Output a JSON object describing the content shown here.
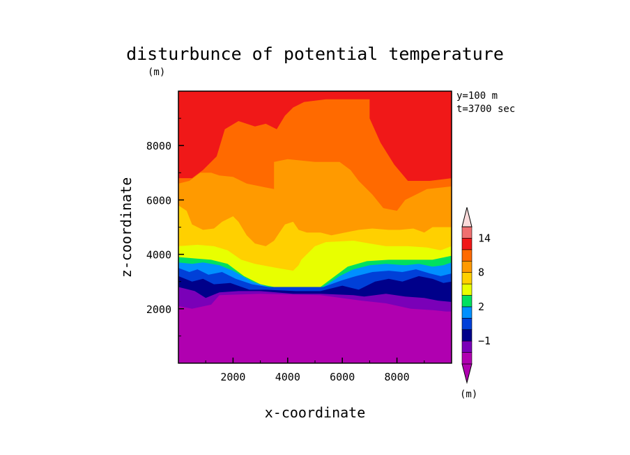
{
  "chart_data": {
    "type": "heatmap",
    "title": "disturbunce of potential temperature",
    "title_unit": "(m)",
    "annotation_lines": [
      "y=100 m",
      "t=3700 sec"
    ],
    "xlabel": "x-coordinate",
    "ylabel": "z-coordinate",
    "xlim": [
      0,
      10000
    ],
    "ylim": [
      0,
      10000
    ],
    "x_ticks": [
      2000,
      4000,
      6000,
      8000
    ],
    "y_ticks": [
      2000,
      4000,
      6000,
      8000
    ],
    "colorbar": {
      "unit_label": "(m)",
      "tick_labels": [
        "14",
        "8",
        "2",
        "-1"
      ],
      "levels": [
        -3,
        -2,
        -1,
        0,
        1,
        2,
        4,
        6,
        8,
        10,
        12,
        14,
        16
      ],
      "colors": [
        "#b000b0",
        "#7a00b8",
        "#00008a",
        "#0040d8",
        "#0090ff",
        "#00e060",
        "#e8ff00",
        "#ffd000",
        "#ff9a00",
        "#ff6a00",
        "#f01818",
        "#f07070",
        "#f4b8b8",
        "#fadada"
      ]
    },
    "bands": [
      {
        "name": "le-3",
        "color": "#b000b0",
        "boundary": [
          [
            0,
            2100
          ],
          [
            500,
            2000
          ],
          [
            1200,
            2150
          ],
          [
            1500,
            2500
          ],
          [
            3000,
            2550
          ],
          [
            5200,
            2500
          ],
          [
            6700,
            2300
          ],
          [
            7600,
            2200
          ],
          [
            8500,
            2000
          ],
          [
            9300,
            1950
          ],
          [
            9800,
            1900
          ],
          [
            10000,
            1900
          ]
        ]
      },
      {
        "name": "-3to-2",
        "color": "#7a00b8",
        "boundary": [
          [
            0,
            2800
          ],
          [
            600,
            2650
          ],
          [
            1000,
            2400
          ],
          [
            1500,
            2600
          ],
          [
            2200,
            2650
          ],
          [
            3000,
            2650
          ],
          [
            4200,
            2550
          ],
          [
            5200,
            2550
          ],
          [
            6400,
            2500
          ],
          [
            6800,
            2450
          ],
          [
            7600,
            2550
          ],
          [
            8300,
            2450
          ],
          [
            9000,
            2400
          ],
          [
            9500,
            2300
          ],
          [
            10000,
            2250
          ]
        ]
      },
      {
        "name": "-2to-1",
        "color": "#00008a",
        "boundary": [
          [
            0,
            3200
          ],
          [
            500,
            3000
          ],
          [
            900,
            3100
          ],
          [
            1300,
            2900
          ],
          [
            1900,
            2950
          ],
          [
            2600,
            2700
          ],
          [
            3200,
            2700
          ],
          [
            4300,
            2650
          ],
          [
            5200,
            2650
          ],
          [
            6000,
            2850
          ],
          [
            6600,
            2700
          ],
          [
            7200,
            3000
          ],
          [
            7700,
            3100
          ],
          [
            8200,
            3000
          ],
          [
            8800,
            3200
          ],
          [
            9300,
            3100
          ],
          [
            9700,
            2950
          ],
          [
            10000,
            3000
          ]
        ]
      },
      {
        "name": "-1to0",
        "color": "#0040d8",
        "boundary": [
          [
            0,
            3500
          ],
          [
            400,
            3350
          ],
          [
            700,
            3450
          ],
          [
            1100,
            3250
          ],
          [
            1600,
            3350
          ],
          [
            2100,
            3100
          ],
          [
            2700,
            2900
          ],
          [
            3300,
            2800
          ],
          [
            5300,
            2800
          ],
          [
            6000,
            3050
          ],
          [
            6500,
            3200
          ],
          [
            7100,
            3350
          ],
          [
            7700,
            3400
          ],
          [
            8200,
            3350
          ],
          [
            8700,
            3450
          ],
          [
            9200,
            3300
          ],
          [
            9600,
            3200
          ],
          [
            10000,
            3300
          ]
        ]
      },
      {
        "name": "0to1",
        "color": "#0090ff",
        "boundary": [
          [
            0,
            3700
          ],
          [
            500,
            3650
          ],
          [
            900,
            3700
          ],
          [
            1500,
            3600
          ],
          [
            2000,
            3400
          ],
          [
            2700,
            3000
          ],
          [
            3300,
            2800
          ],
          [
            5300,
            2800
          ],
          [
            5900,
            3200
          ],
          [
            6400,
            3450
          ],
          [
            7000,
            3600
          ],
          [
            7600,
            3650
          ],
          [
            8300,
            3600
          ],
          [
            8800,
            3650
          ],
          [
            9300,
            3550
          ],
          [
            9700,
            3600
          ],
          [
            10000,
            3700
          ]
        ]
      },
      {
        "name": "1to2",
        "color": "#00e060",
        "boundary": [
          [
            0,
            3900
          ],
          [
            600,
            3850
          ],
          [
            1200,
            3800
          ],
          [
            1800,
            3650
          ],
          [
            2400,
            3200
          ],
          [
            3000,
            2900
          ],
          [
            3500,
            2800
          ],
          [
            5200,
            2800
          ],
          [
            5600,
            3100
          ],
          [
            6200,
            3550
          ],
          [
            6900,
            3750
          ],
          [
            7700,
            3800
          ],
          [
            8500,
            3800
          ],
          [
            9300,
            3800
          ],
          [
            10000,
            3950
          ]
        ]
      },
      {
        "name": "2to4",
        "color": "#e8ff00",
        "boundary": [
          [
            0,
            4300
          ],
          [
            700,
            4350
          ],
          [
            1300,
            4300
          ],
          [
            1800,
            4150
          ],
          [
            2300,
            3800
          ],
          [
            2800,
            3650
          ],
          [
            3600,
            3500
          ],
          [
            4200,
            3400
          ],
          [
            4400,
            3600
          ],
          [
            4500,
            3800
          ],
          [
            5000,
            4300
          ],
          [
            5400,
            4450
          ],
          [
            6400,
            4500
          ],
          [
            7000,
            4400
          ],
          [
            7600,
            4300
          ],
          [
            8400,
            4300
          ],
          [
            9100,
            4250
          ],
          [
            9600,
            4150
          ],
          [
            10000,
            4300
          ]
        ]
      },
      {
        "name": "4to6",
        "color": "#ffd000",
        "boundary": [
          [
            0,
            5800
          ],
          [
            300,
            5600
          ],
          [
            500,
            5100
          ],
          [
            900,
            4900
          ],
          [
            1300,
            4950
          ],
          [
            1600,
            5200
          ],
          [
            2000,
            5400
          ],
          [
            2200,
            5200
          ],
          [
            2500,
            4700
          ],
          [
            2800,
            4400
          ],
          [
            3200,
            4300
          ],
          [
            3500,
            4500
          ],
          [
            3700,
            4800
          ],
          [
            3900,
            5100
          ],
          [
            4200,
            5200
          ],
          [
            4400,
            4900
          ],
          [
            4700,
            4800
          ],
          [
            5200,
            4800
          ],
          [
            5600,
            4700
          ],
          [
            6100,
            4800
          ],
          [
            6600,
            4900
          ],
          [
            7100,
            4950
          ],
          [
            7700,
            4900
          ],
          [
            8100,
            4900
          ],
          [
            8600,
            4950
          ],
          [
            9000,
            4800
          ],
          [
            9300,
            5000
          ],
          [
            9700,
            5000
          ],
          [
            10000,
            5000
          ]
        ]
      },
      {
        "name": "6to8",
        "color": "#ff9a00",
        "boundary": [
          [
            0,
            6600
          ],
          [
            400,
            6700
          ],
          [
            800,
            7000
          ],
          [
            1200,
            7000
          ],
          [
            1500,
            6900
          ],
          [
            2000,
            6850
          ],
          [
            2500,
            6600
          ],
          [
            3000,
            6500
          ],
          [
            3500,
            6400
          ],
          [
            3500,
            7400
          ],
          [
            4000,
            7500
          ],
          [
            5000,
            7400
          ],
          [
            5900,
            7400
          ],
          [
            6300,
            7100
          ],
          [
            6600,
            6700
          ],
          [
            7100,
            6200
          ],
          [
            7500,
            5700
          ],
          [
            8000,
            5600
          ],
          [
            8300,
            6000
          ],
          [
            8700,
            6200
          ],
          [
            9100,
            6400
          ],
          [
            10000,
            6500
          ]
        ]
      },
      {
        "name": "8to10",
        "color": "#ff6a00",
        "boundary": [
          [
            0,
            6800
          ],
          [
            500,
            6800
          ],
          [
            900,
            7100
          ],
          [
            1400,
            7600
          ],
          [
            1700,
            8600
          ],
          [
            2200,
            8900
          ],
          [
            2800,
            8700
          ],
          [
            3200,
            8800
          ],
          [
            3600,
            8600
          ],
          [
            3900,
            9100
          ],
          [
            4200,
            9400
          ],
          [
            4600,
            9600
          ],
          [
            5400,
            9700
          ],
          [
            6100,
            9700
          ],
          [
            7000,
            9700
          ],
          [
            7000,
            9000
          ],
          [
            7400,
            8100
          ],
          [
            7900,
            7300
          ],
          [
            8400,
            6700
          ],
          [
            9200,
            6700
          ],
          [
            10000,
            6800
          ]
        ]
      }
    ],
    "top_band": {
      "name": "10to12",
      "color": "#f01818"
    }
  }
}
